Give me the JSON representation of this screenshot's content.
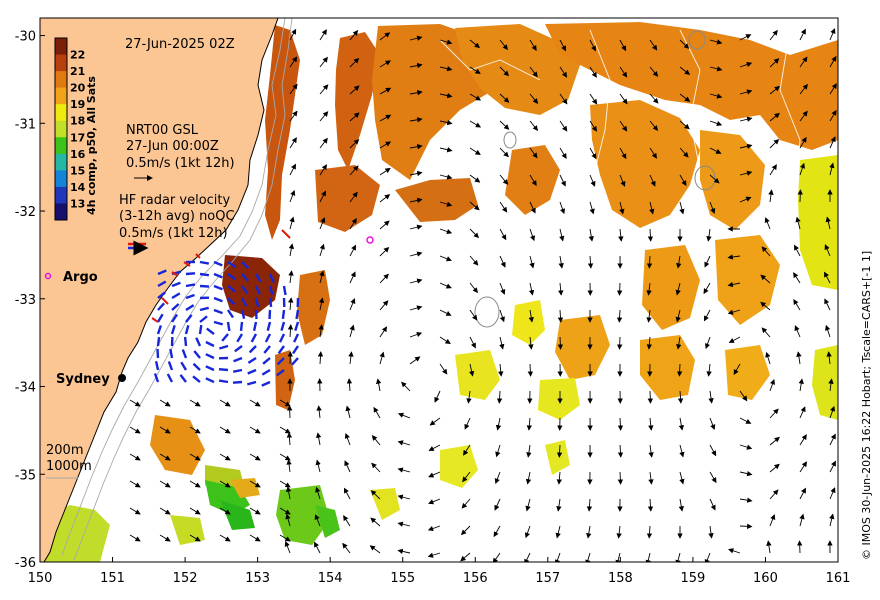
{
  "timestamp": "27-Jun-2025 02Z",
  "colorbar": {
    "label": "4h comp, p50, All Sats",
    "ticks": [
      "22",
      "21",
      "20",
      "19",
      "18",
      "17",
      "16",
      "15",
      "14",
      "13"
    ],
    "colors": [
      "#7a1f08",
      "#b8400e",
      "#df7a12",
      "#f0a318",
      "#eeea10",
      "#c2df2a",
      "#3cc21a",
      "#25b7a3",
      "#1683d7",
      "#1f37b8",
      "#15116c"
    ]
  },
  "legend": {
    "nrt_title": "NRT00 GSL",
    "nrt_time": "27-Jun 00:00Z",
    "nrt_scale": "0.5m/s (1kt 12h)",
    "hf_title": "HF radar velocity",
    "hf_sub": "(3-12h avg) noQC",
    "hf_scale": "0.5m/s (1kt 12h)"
  },
  "places": {
    "argo": "Argo",
    "sydney": "Sydney"
  },
  "isobaths": {
    "a": "200m",
    "b": "1000m"
  },
  "credit": "© IMOS 30-Jun-2025 16:22 Hobart; Tscale=CARS+[-1 1]",
  "axes": {
    "x_ticks": [
      "150",
      "151",
      "152",
      "153",
      "154",
      "155",
      "156",
      "157",
      "158",
      "159",
      "160",
      "161"
    ],
    "y_ticks": [
      "-30",
      "-31",
      "-32",
      "-33",
      "-34",
      "-35",
      "-36"
    ],
    "lon_range": [
      150,
      161
    ],
    "lat_range": [
      -36,
      -29.8
    ]
  }
}
